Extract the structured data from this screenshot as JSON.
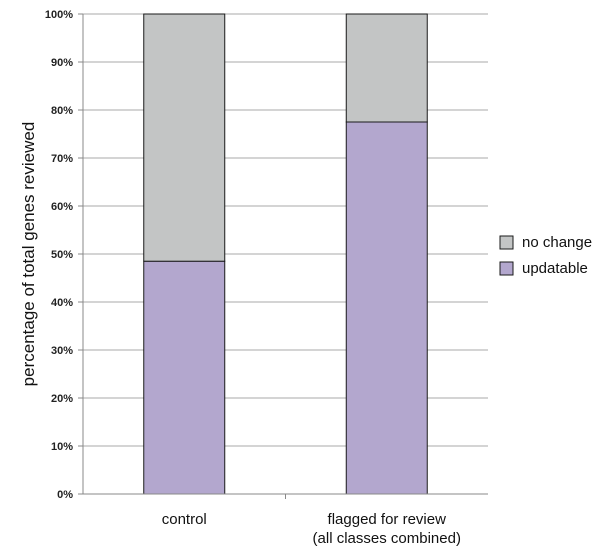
{
  "chart_data": {
    "type": "bar",
    "stacked": true,
    "categories": [
      "control",
      "flagged for review\n(all classes combined)"
    ],
    "series": [
      {
        "name": "updatable",
        "values": [
          48.5,
          77.5
        ],
        "color": "#b3a7ce"
      },
      {
        "name": "no change",
        "values": [
          51.5,
          22.5
        ],
        "color": "#c3c5c5"
      }
    ],
    "ylabel": "percentage of total genes reviewed",
    "xlabel": "",
    "ylim": [
      0,
      100
    ],
    "yticks": [
      "0%",
      "10%",
      "20%",
      "30%",
      "40%",
      "50%",
      "60%",
      "70%",
      "80%",
      "90%",
      "100%"
    ],
    "grid": true,
    "legend": {
      "position": "right",
      "entries": [
        "no change",
        "updatable"
      ]
    }
  }
}
